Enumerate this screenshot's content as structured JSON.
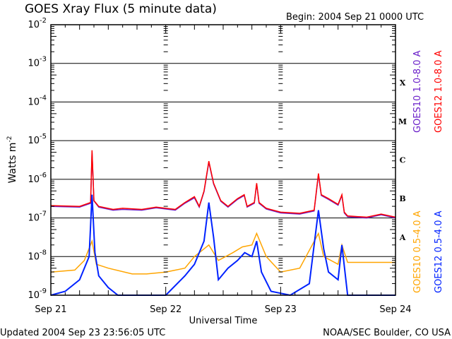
{
  "chart_data": {
    "type": "line",
    "title": "GOES Xray Flux (5 minute data)",
    "begin": "Begin:  2004 Sep 21 0000 UTC",
    "xlabel": "Universal Time",
    "ylabel": "Watts m",
    "ylabel_exp": "-2",
    "x_unit": "hours since 2004 Sep 21 0000 UTC",
    "xlim": [
      0,
      72
    ],
    "ylim_log10": [
      -9,
      -2
    ],
    "x_ticks": [
      {
        "h": 0,
        "label": "Sep 21"
      },
      {
        "h": 24,
        "label": "Sep 22"
      },
      {
        "h": 48,
        "label": "Sep 23"
      },
      {
        "h": 72,
        "label": "Sep 24"
      }
    ],
    "y_ticks": [
      {
        "exp": -2,
        "base": "10",
        "sup": "-2"
      },
      {
        "exp": -3,
        "base": "10",
        "sup": "-3"
      },
      {
        "exp": -4,
        "base": "10",
        "sup": "-4"
      },
      {
        "exp": -5,
        "base": "10",
        "sup": "-5"
      },
      {
        "exp": -6,
        "base": "10",
        "sup": "-6"
      },
      {
        "exp": -7,
        "base": "10",
        "sup": "-7"
      },
      {
        "exp": -8,
        "base": "10",
        "sup": "-8"
      },
      {
        "exp": -9,
        "base": "10",
        "sup": "-9"
      }
    ],
    "flare_classes": [
      {
        "label": "X",
        "exp": -3.5
      },
      {
        "label": "M",
        "exp": -4.5
      },
      {
        "label": "C",
        "exp": -5.5
      },
      {
        "label": "B",
        "exp": -6.5
      },
      {
        "label": "A",
        "exp": -7.5
      }
    ],
    "series": [
      {
        "name": "GOES10 1.0-8.0 A",
        "color": "#6a1fc9",
        "points": [
          [
            0,
            -6.7
          ],
          [
            6,
            -6.72
          ],
          [
            8.3,
            -6.62
          ],
          [
            8.6,
            -5.3
          ],
          [
            9,
            -6.56
          ],
          [
            10,
            -6.72
          ],
          [
            13,
            -6.8
          ],
          [
            15,
            -6.78
          ],
          [
            19,
            -6.8
          ],
          [
            22,
            -6.74
          ],
          [
            26,
            -6.8
          ],
          [
            28,
            -6.62
          ],
          [
            30,
            -6.48
          ],
          [
            31,
            -6.72
          ],
          [
            32,
            -6.32
          ],
          [
            33,
            -5.56
          ],
          [
            34,
            -6.12
          ],
          [
            35.5,
            -6.57
          ],
          [
            37,
            -6.72
          ],
          [
            39,
            -6.52
          ],
          [
            40.4,
            -6.42
          ],
          [
            41,
            -6.72
          ],
          [
            42.5,
            -6.62
          ],
          [
            43,
            -6.12
          ],
          [
            43.5,
            -6.62
          ],
          [
            45,
            -6.77
          ],
          [
            48,
            -6.87
          ],
          [
            52,
            -6.9
          ],
          [
            55,
            -6.82
          ],
          [
            55.9,
            -5.88
          ],
          [
            56.5,
            -6.42
          ],
          [
            58,
            -6.52
          ],
          [
            60,
            -6.67
          ],
          [
            60.8,
            -6.42
          ],
          [
            61.3,
            -6.87
          ],
          [
            62,
            -6.97
          ],
          [
            66,
            -7.0
          ],
          [
            69,
            -6.92
          ],
          [
            72,
            -7.0
          ]
        ]
      },
      {
        "name": "GOES12 1.0-8.0 A",
        "color": "#ff0000",
        "points": [
          [
            0,
            -6.68
          ],
          [
            6,
            -6.7
          ],
          [
            8.3,
            -6.6
          ],
          [
            8.6,
            -5.25
          ],
          [
            9,
            -6.55
          ],
          [
            10,
            -6.7
          ],
          [
            13,
            -6.78
          ],
          [
            15,
            -6.75
          ],
          [
            19,
            -6.78
          ],
          [
            22,
            -6.72
          ],
          [
            26,
            -6.78
          ],
          [
            28,
            -6.6
          ],
          [
            30,
            -6.45
          ],
          [
            31,
            -6.7
          ],
          [
            32,
            -6.3
          ],
          [
            33,
            -5.53
          ],
          [
            34,
            -6.1
          ],
          [
            35.5,
            -6.55
          ],
          [
            37,
            -6.7
          ],
          [
            39,
            -6.5
          ],
          [
            40.4,
            -6.4
          ],
          [
            41,
            -6.7
          ],
          [
            42.5,
            -6.6
          ],
          [
            43,
            -6.1
          ],
          [
            43.5,
            -6.6
          ],
          [
            45,
            -6.75
          ],
          [
            48,
            -6.85
          ],
          [
            52,
            -6.88
          ],
          [
            55,
            -6.8
          ],
          [
            55.9,
            -5.85
          ],
          [
            56.5,
            -6.4
          ],
          [
            58,
            -6.5
          ],
          [
            60,
            -6.65
          ],
          [
            60.8,
            -6.4
          ],
          [
            61.3,
            -6.85
          ],
          [
            62,
            -6.95
          ],
          [
            66,
            -6.98
          ],
          [
            69,
            -6.9
          ],
          [
            72,
            -6.98
          ]
        ]
      },
      {
        "name": "GOES10 0.5-4.0 A",
        "color": "#ffa500",
        "points": [
          [
            0,
            -8.4
          ],
          [
            5,
            -8.35
          ],
          [
            7,
            -8.1
          ],
          [
            8.6,
            -7.6
          ],
          [
            9.5,
            -8.2
          ],
          [
            12,
            -8.3
          ],
          [
            17,
            -8.45
          ],
          [
            20,
            -8.45
          ],
          [
            24,
            -8.4
          ],
          [
            28,
            -8.3
          ],
          [
            30,
            -8.0
          ],
          [
            33,
            -7.7
          ],
          [
            35,
            -8.1
          ],
          [
            38,
            -7.9
          ],
          [
            40,
            -7.75
          ],
          [
            42,
            -7.7
          ],
          [
            43,
            -7.4
          ],
          [
            45,
            -8.0
          ],
          [
            48,
            -8.4
          ],
          [
            52,
            -8.3
          ],
          [
            55.9,
            -7.4
          ],
          [
            57,
            -8.0
          ],
          [
            60,
            -8.2
          ],
          [
            60.8,
            -7.7
          ],
          [
            62,
            -8.15
          ],
          [
            72,
            -8.15
          ]
        ]
      },
      {
        "name": "GOES12 0.5-4.0 A",
        "color": "#0022ff",
        "points": [
          [
            0,
            -9
          ],
          [
            3,
            -8.9
          ],
          [
            6,
            -8.6
          ],
          [
            8,
            -8.0
          ],
          [
            8.6,
            -6.4
          ],
          [
            9.2,
            -7.9
          ],
          [
            10,
            -8.5
          ],
          [
            12,
            -8.8
          ],
          [
            14,
            -9
          ],
          [
            18,
            -9
          ],
          [
            24,
            -9
          ],
          [
            28,
            -8.5
          ],
          [
            30,
            -8.2
          ],
          [
            32,
            -7.6
          ],
          [
            33,
            -6.6
          ],
          [
            34,
            -7.5
          ],
          [
            35,
            -8.6
          ],
          [
            37,
            -8.3
          ],
          [
            39,
            -8.1
          ],
          [
            40.5,
            -7.9
          ],
          [
            42,
            -8.0
          ],
          [
            43,
            -7.6
          ],
          [
            44,
            -8.4
          ],
          [
            46,
            -8.9
          ],
          [
            50,
            -9
          ],
          [
            54,
            -8.7
          ],
          [
            55.9,
            -6.8
          ],
          [
            57,
            -7.8
          ],
          [
            58,
            -8.4
          ],
          [
            60,
            -8.6
          ],
          [
            60.8,
            -7.7
          ],
          [
            62,
            -9
          ],
          [
            72,
            -9
          ]
        ]
      }
    ]
  },
  "footer": {
    "updated": "Updated 2004 Sep 23 23:56:05 UTC",
    "credit": "NOAA/SEC Boulder, CO USA"
  }
}
